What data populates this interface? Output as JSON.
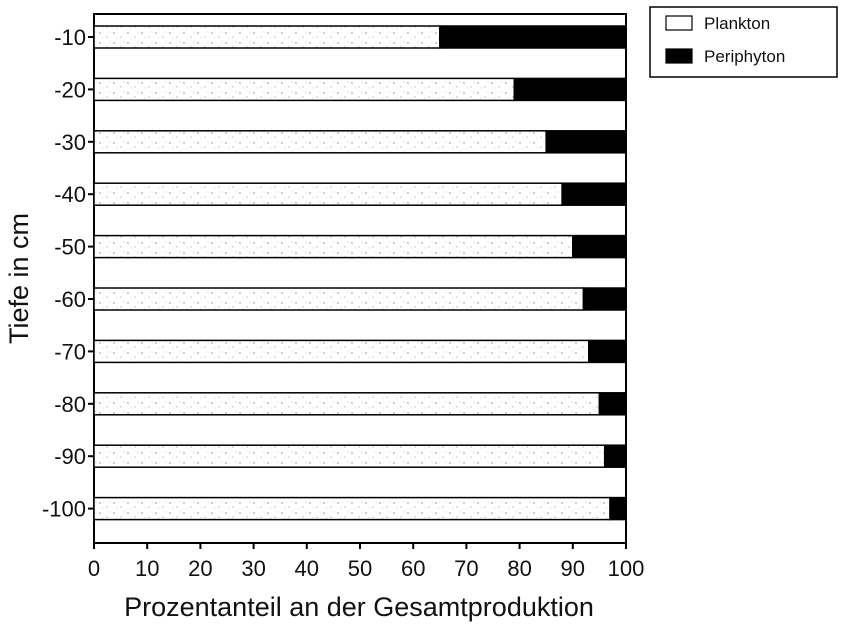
{
  "chart_data": {
    "type": "bar",
    "orientation": "horizontal",
    "stacked": true,
    "xlabel": "Prozentanteil an der Gesamtproduktion",
    "ylabel": "Tiefe in cm",
    "categories": [
      "-10",
      "-20",
      "-30",
      "-40",
      "-50",
      "-60",
      "-70",
      "-80",
      "-90",
      "-100"
    ],
    "xlim": [
      0,
      100
    ],
    "xticks": [
      "0",
      "10",
      "20",
      "30",
      "40",
      "50",
      "60",
      "70",
      "80",
      "90",
      "100"
    ],
    "series": [
      {
        "name": "Plankton",
        "values": [
          65,
          79,
          85,
          88,
          90,
          92,
          93,
          95,
          96,
          97
        ],
        "color": "#ffffff"
      },
      {
        "name": "Periphyton",
        "values": [
          35,
          21,
          15,
          12,
          10,
          8,
          7,
          5,
          4,
          3
        ],
        "color": "#000000"
      }
    ],
    "legend": {
      "position": "top-right",
      "entries": [
        "Plankton",
        "Periphyton"
      ]
    },
    "grid": false
  }
}
